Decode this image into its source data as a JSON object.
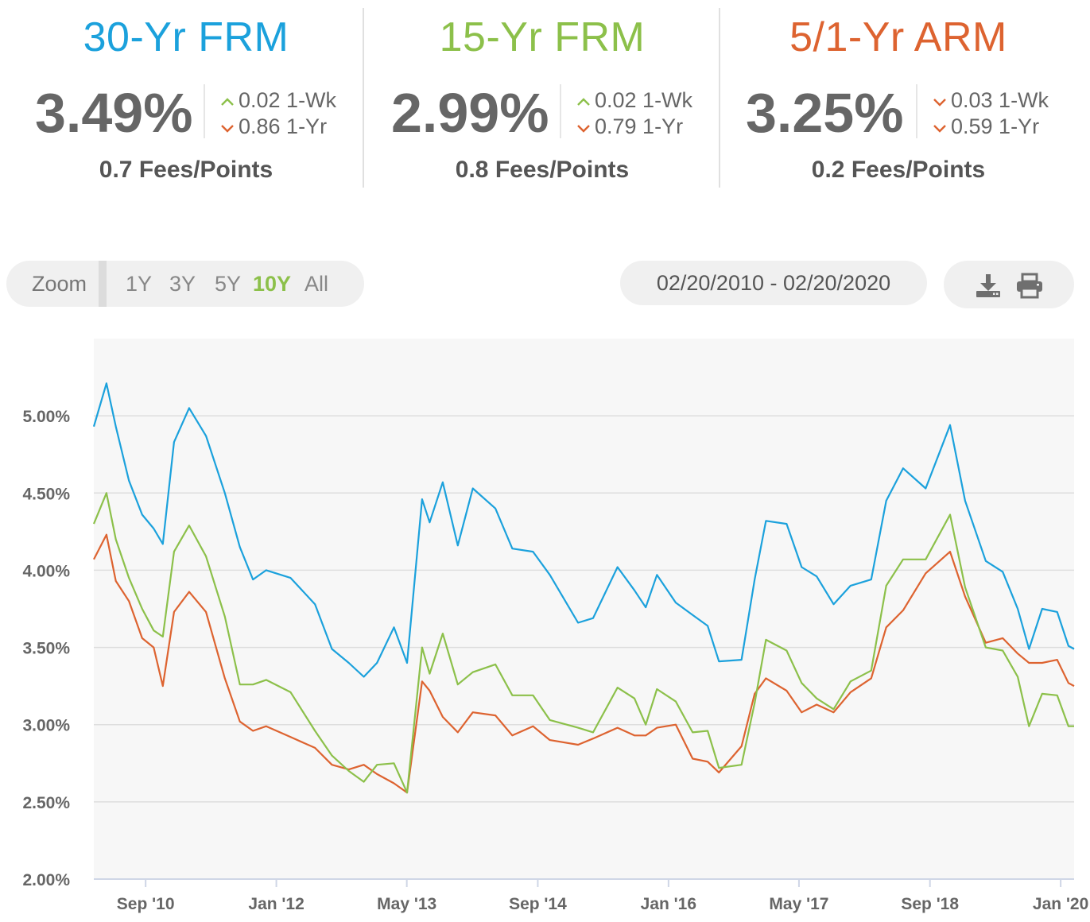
{
  "colors": {
    "frm30": "#1ba1dc",
    "frm15": "#8cc04a",
    "arm51": "#dd6330",
    "up": "#8cc04a",
    "down": "#dd6330",
    "zoom_active": "#8cc04a"
  },
  "stats": [
    {
      "title": "30-Yr FRM",
      "rate": "3.49%",
      "week_change": "0.02 1-Wk",
      "week_dir": "up",
      "year_change": "0.86 1-Yr",
      "year_dir": "down",
      "fees": "0.7 Fees/Points"
    },
    {
      "title": "15-Yr FRM",
      "rate": "2.99%",
      "week_change": "0.02 1-Wk",
      "week_dir": "up",
      "year_change": "0.79 1-Yr",
      "year_dir": "down",
      "fees": "0.8 Fees/Points"
    },
    {
      "title": "5/1-Yr ARM",
      "rate": "3.25%",
      "week_change": "0.03 1-Wk",
      "week_dir": "down",
      "year_change": "0.59 1-Yr",
      "year_dir": "down",
      "fees": "0.2 Fees/Points"
    }
  ],
  "zoom": {
    "label": "Zoom",
    "options": [
      "1Y",
      "3Y",
      "5Y",
      "10Y",
      "All"
    ],
    "selected": "10Y"
  },
  "date_range": "02/20/2010 - 02/20/2020",
  "tools": {
    "download_icon": "download-icon",
    "print_icon": "print-icon"
  },
  "chart_data": {
    "type": "line",
    "x_range": [
      "2010-02-20",
      "2020-02-20"
    ],
    "ylim": [
      2.0,
      5.5
    ],
    "y_ticks": [
      2.0,
      2.5,
      3.0,
      3.5,
      4.0,
      4.5,
      5.0
    ],
    "y_tick_labels": [
      "2.00%",
      "2.50%",
      "3.00%",
      "3.50%",
      "4.00%",
      "4.50%",
      "5.00%"
    ],
    "x_tick_labels": [
      "Sep '10",
      "Jan '12",
      "May '13",
      "Sep '14",
      "Jan '16",
      "May '17",
      "Sep '18",
      "Jan '20"
    ],
    "x_tick_dates": [
      "2010-09-01",
      "2012-01-01",
      "2013-05-01",
      "2014-09-01",
      "2016-01-01",
      "2017-05-01",
      "2018-09-01",
      "2020-01-01"
    ],
    "grid": true,
    "legend": false,
    "series": [
      {
        "key": "frm30",
        "x": [
          "2010-02-20",
          "2010-04-08",
          "2010-05-13",
          "2010-07-01",
          "2010-08-19",
          "2010-10-01",
          "2010-11-04",
          "2010-12-16",
          "2011-02-10",
          "2011-04-14",
          "2011-06-23",
          "2011-08-18",
          "2011-10-06",
          "2011-11-24",
          "2012-02-23",
          "2012-05-24",
          "2012-07-26",
          "2012-09-27",
          "2012-11-22",
          "2013-01-10",
          "2013-03-14",
          "2013-05-02",
          "2013-06-27",
          "2013-07-25",
          "2013-09-12",
          "2013-11-07",
          "2014-01-02",
          "2014-03-27",
          "2014-05-29",
          "2014-08-14",
          "2014-10-16",
          "2015-01-29",
          "2015-03-26",
          "2015-06-25",
          "2015-08-27",
          "2015-10-08",
          "2015-11-19",
          "2016-01-28",
          "2016-03-31",
          "2016-05-26",
          "2016-07-07",
          "2016-09-29",
          "2016-11-17",
          "2016-12-29",
          "2017-03-16",
          "2017-05-11",
          "2017-07-06",
          "2017-09-07",
          "2017-11-09",
          "2018-01-25",
          "2018-03-22",
          "2018-05-24",
          "2018-08-16",
          "2018-11-15",
          "2019-01-10",
          "2019-03-28",
          "2019-05-30",
          "2019-07-25",
          "2019-09-05",
          "2019-10-24",
          "2019-12-19",
          "2020-01-30",
          "2020-02-20"
        ],
        "y": [
          4.93,
          5.21,
          4.93,
          4.58,
          4.36,
          4.27,
          4.17,
          4.83,
          5.05,
          4.87,
          4.5,
          4.15,
          3.94,
          4.0,
          3.95,
          3.78,
          3.49,
          3.4,
          3.31,
          3.4,
          3.63,
          3.4,
          4.46,
          4.31,
          4.57,
          4.16,
          4.53,
          4.4,
          4.14,
          4.12,
          3.97,
          3.66,
          3.69,
          4.02,
          3.87,
          3.76,
          3.97,
          3.79,
          3.71,
          3.64,
          3.41,
          3.42,
          3.94,
          4.32,
          4.3,
          4.02,
          3.96,
          3.78,
          3.9,
          3.94,
          4.45,
          4.66,
          4.53,
          4.94,
          4.45,
          4.06,
          3.99,
          3.75,
          3.49,
          3.75,
          3.73,
          3.51,
          3.49
        ]
      },
      {
        "key": "frm15",
        "x": [
          "2010-02-20",
          "2010-04-08",
          "2010-05-13",
          "2010-07-01",
          "2010-08-19",
          "2010-10-01",
          "2010-11-04",
          "2010-12-16",
          "2011-02-10",
          "2011-04-14",
          "2011-06-23",
          "2011-08-18",
          "2011-10-06",
          "2011-11-24",
          "2012-02-23",
          "2012-05-24",
          "2012-07-26",
          "2012-09-27",
          "2012-11-22",
          "2013-01-10",
          "2013-03-14",
          "2013-05-02",
          "2013-06-27",
          "2013-07-25",
          "2013-09-12",
          "2013-11-07",
          "2014-01-02",
          "2014-03-27",
          "2014-05-29",
          "2014-08-14",
          "2014-10-16",
          "2015-01-29",
          "2015-03-26",
          "2015-06-25",
          "2015-08-27",
          "2015-10-08",
          "2015-11-19",
          "2016-01-28",
          "2016-03-31",
          "2016-05-26",
          "2016-07-07",
          "2016-09-29",
          "2016-11-17",
          "2016-12-29",
          "2017-03-16",
          "2017-05-11",
          "2017-07-06",
          "2017-09-07",
          "2017-11-09",
          "2018-01-25",
          "2018-03-22",
          "2018-05-24",
          "2018-08-16",
          "2018-11-15",
          "2019-01-10",
          "2019-03-28",
          "2019-05-30",
          "2019-07-25",
          "2019-09-05",
          "2019-10-24",
          "2019-12-19",
          "2020-01-30",
          "2020-02-20"
        ],
        "y": [
          4.3,
          4.5,
          4.2,
          3.95,
          3.75,
          3.61,
          3.57,
          4.12,
          4.29,
          4.09,
          3.7,
          3.26,
          3.26,
          3.29,
          3.21,
          2.96,
          2.8,
          2.7,
          2.63,
          2.74,
          2.75,
          2.56,
          3.5,
          3.33,
          3.59,
          3.26,
          3.34,
          3.39,
          3.19,
          3.19,
          3.03,
          2.98,
          2.95,
          3.24,
          3.17,
          3.0,
          3.23,
          3.15,
          2.95,
          2.96,
          2.72,
          2.74,
          3.14,
          3.55,
          3.48,
          3.27,
          3.17,
          3.1,
          3.28,
          3.35,
          3.9,
          4.07,
          4.07,
          4.36,
          3.89,
          3.5,
          3.48,
          3.31,
          2.99,
          3.2,
          3.19,
          2.99,
          2.99
        ]
      },
      {
        "key": "arm51",
        "x": [
          "2010-02-20",
          "2010-04-08",
          "2010-05-13",
          "2010-07-01",
          "2010-08-19",
          "2010-10-01",
          "2010-11-04",
          "2010-12-16",
          "2011-02-10",
          "2011-04-14",
          "2011-06-23",
          "2011-08-18",
          "2011-10-06",
          "2011-11-24",
          "2012-02-23",
          "2012-05-24",
          "2012-07-26",
          "2012-09-27",
          "2012-11-22",
          "2013-01-10",
          "2013-03-14",
          "2013-05-02",
          "2013-06-27",
          "2013-07-25",
          "2013-09-12",
          "2013-11-07",
          "2014-01-02",
          "2014-03-27",
          "2014-05-29",
          "2014-08-14",
          "2014-10-16",
          "2015-01-29",
          "2015-03-26",
          "2015-06-25",
          "2015-08-27",
          "2015-10-08",
          "2015-11-19",
          "2016-01-28",
          "2016-03-31",
          "2016-05-26",
          "2016-07-07",
          "2016-09-29",
          "2016-11-17",
          "2016-12-29",
          "2017-03-16",
          "2017-05-11",
          "2017-07-06",
          "2017-09-07",
          "2017-11-09",
          "2018-01-25",
          "2018-03-22",
          "2018-05-24",
          "2018-08-16",
          "2018-11-15",
          "2019-01-10",
          "2019-03-28",
          "2019-05-30",
          "2019-07-25",
          "2019-09-05",
          "2019-10-24",
          "2019-12-19",
          "2020-01-30",
          "2020-02-20"
        ],
        "y": [
          4.07,
          4.23,
          3.93,
          3.8,
          3.56,
          3.5,
          3.25,
          3.73,
          3.86,
          3.73,
          3.3,
          3.02,
          2.96,
          2.99,
          2.92,
          2.85,
          2.74,
          2.71,
          2.74,
          2.68,
          2.62,
          2.56,
          3.28,
          3.22,
          3.05,
          2.95,
          3.08,
          3.06,
          2.93,
          2.99,
          2.9,
          2.87,
          2.91,
          2.98,
          2.93,
          2.93,
          2.98,
          3.0,
          2.78,
          2.76,
          2.69,
          2.86,
          3.2,
          3.3,
          3.22,
          3.08,
          3.13,
          3.08,
          3.21,
          3.3,
          3.63,
          3.74,
          3.98,
          4.12,
          3.83,
          3.53,
          3.56,
          3.46,
          3.4,
          3.4,
          3.42,
          3.27,
          3.25
        ]
      }
    ]
  }
}
